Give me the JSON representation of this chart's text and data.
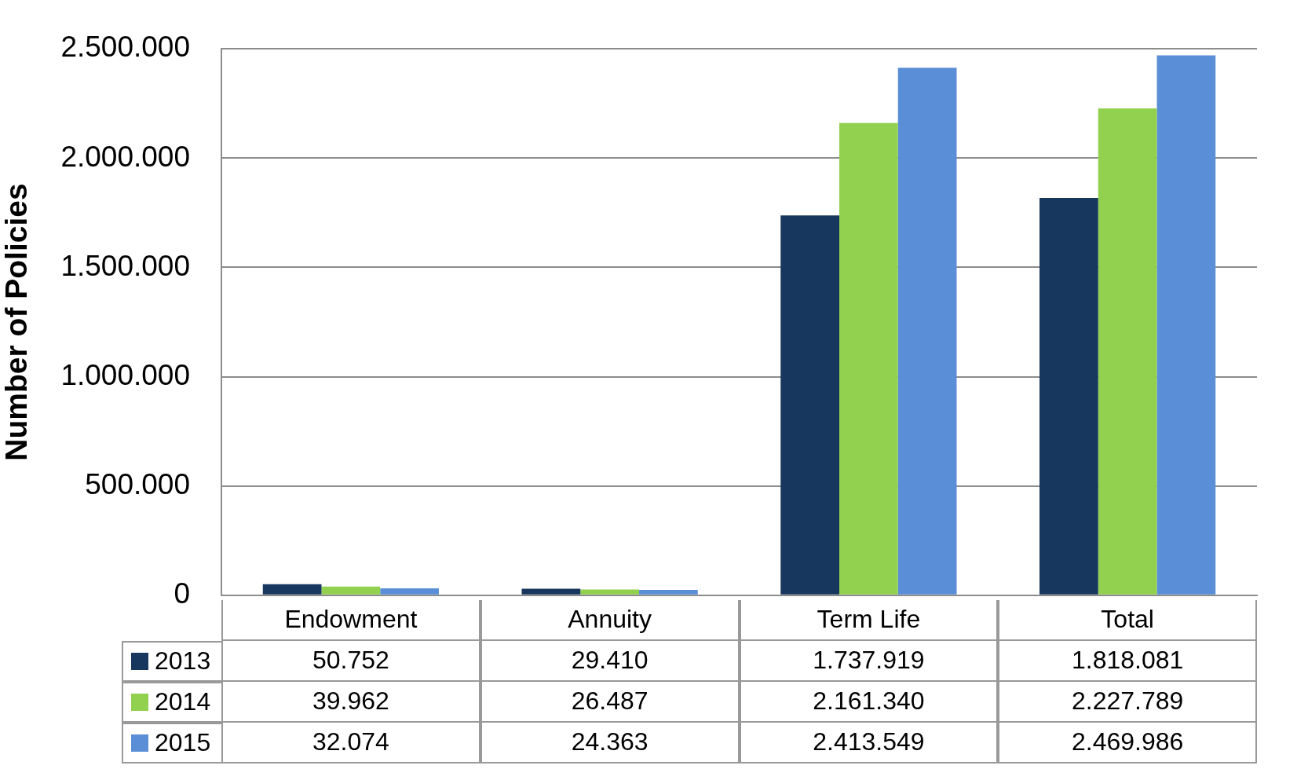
{
  "chart_data": {
    "type": "bar",
    "ylabel": "Number of Policies",
    "categories": [
      "Endowment",
      "Annuity",
      "Term Life",
      "Total"
    ],
    "series": [
      {
        "name": "2013",
        "color": "#18375e",
        "values": [
          50752,
          29410,
          1737919,
          1818081
        ],
        "value_labels": [
          "50.752",
          "29.410",
          "1.737.919",
          "1.818.081"
        ]
      },
      {
        "name": "2014",
        "color": "#92d050",
        "values": [
          39962,
          26487,
          2161340,
          2227789
        ],
        "value_labels": [
          "39.962",
          "26.487",
          "2.161.340",
          "2.227.789"
        ]
      },
      {
        "name": "2015",
        "color": "#5a8ed6",
        "values": [
          32074,
          24363,
          2413549,
          2469986
        ],
        "value_labels": [
          "32.074",
          "24.363",
          "2.413.549",
          "2.469.986"
        ]
      }
    ],
    "ylim": [
      0,
      2500000
    ],
    "yticks": [
      0,
      {
        "value": 500000,
        "label": "500.000"
      },
      {
        "value": 1000000,
        "label": "1.000.000"
      },
      {
        "value": 1500000,
        "label": "1.500.000"
      },
      {
        "value": 2000000,
        "label": "2.000.000"
      },
      {
        "value": 2500000,
        "label": "2.500.000"
      }
    ],
    "grid": "y",
    "legend": "bottom"
  }
}
